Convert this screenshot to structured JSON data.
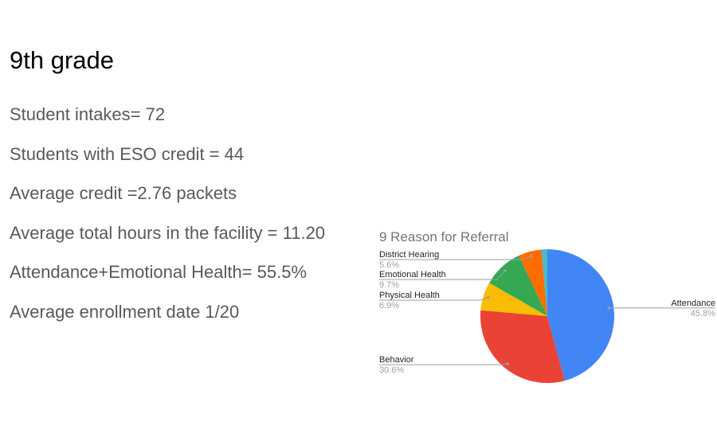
{
  "slide": {
    "title": "9th grade",
    "stats": [
      "Student intakes= 72",
      "Students with ESO credit = 44",
      "Average credit =2.76 packets",
      "Average total hours in the facility = 11.20",
      "Attendance+Emotional Health= 55.5%",
      "Average enrollment date 1/20"
    ]
  },
  "chart_data": {
    "type": "pie",
    "title": "9 Reason for Referral",
    "slices": [
      {
        "label": "Attendance",
        "value": 45.8,
        "display": "45.8%",
        "color": "#4285f4"
      },
      {
        "label": "Behavior",
        "value": 30.6,
        "display": "30.6%",
        "color": "#ea4335"
      },
      {
        "label": "Physical Health",
        "value": 6.9,
        "display": "6.9%",
        "color": "#fbbc04"
      },
      {
        "label": "Emotional Health",
        "value": 9.7,
        "display": "9.7%",
        "color": "#34a853"
      },
      {
        "label": "District Hearing",
        "value": 5.6,
        "display": "5.6%",
        "color": "#ff6d01"
      },
      {
        "label": "",
        "value": 1.4,
        "display": "",
        "color": "#46bdc6"
      }
    ],
    "legend": "none (slices labeled with callout lines)"
  }
}
